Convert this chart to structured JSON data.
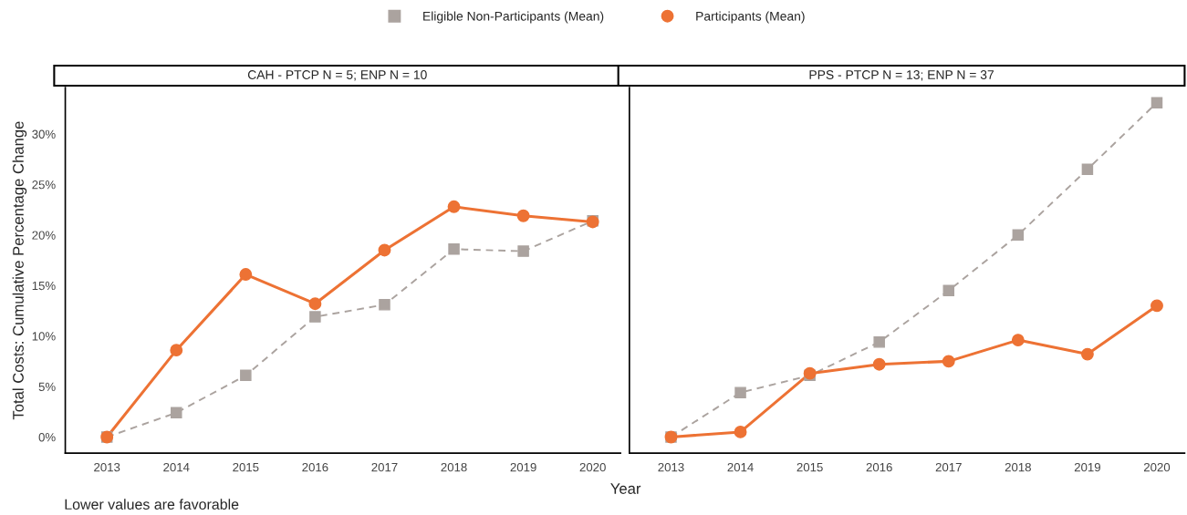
{
  "chart_data": [
    {
      "type": "line",
      "title": "CAH - PTCP N = 5; ENP N = 10",
      "ylabel": "Total Costs: Cumulative Percentage Change",
      "x": [
        2013,
        2014,
        2015,
        2016,
        2017,
        2018,
        2019,
        2020
      ],
      "series": [
        {
          "name": "Eligible Non-Participants (Mean)",
          "color": "#aba39f",
          "marker": "square",
          "line_style": "dashed",
          "values": [
            0,
            2.4,
            6.1,
            11.9,
            13.1,
            18.6,
            18.4,
            21.4
          ]
        },
        {
          "name": "Participants (Mean)",
          "color": "#ed7234",
          "marker": "circle",
          "line_style": "solid",
          "values": [
            0,
            8.6,
            16.1,
            13.2,
            18.5,
            22.8,
            21.9,
            21.3
          ]
        }
      ],
      "xlim": [
        2012.4,
        2020.4
      ],
      "xticks": [
        2013,
        2014,
        2015,
        2016,
        2017,
        2018,
        2019,
        2020
      ],
      "ylim": [
        -1.6,
        34.6
      ],
      "yticks": [
        {
          "value": 0,
          "label": "0%"
        },
        {
          "value": 5,
          "label": "5%"
        },
        {
          "value": 10,
          "label": "10%"
        },
        {
          "value": 15,
          "label": "15%"
        },
        {
          "value": 20,
          "label": "20%"
        },
        {
          "value": 25,
          "label": "25%"
        },
        {
          "value": 30,
          "label": "30%"
        }
      ],
      "grid": false,
      "legend": "top",
      "annotations": [
        "Lower values are favorable"
      ]
    },
    {
      "type": "line",
      "title": "PPS - PTCP N = 13; ENP N = 37",
      "xlabel": "Year",
      "x": [
        2013,
        2014,
        2015,
        2016,
        2017,
        2018,
        2019,
        2020
      ],
      "series": [
        {
          "color": "#aba39f",
          "marker": "square",
          "line_style": "dashed",
          "values": [
            0,
            4.4,
            6.1,
            9.4,
            14.5,
            20.0,
            26.5,
            33.1
          ]
        },
        {
          "color": "#ed7234",
          "marker": "circle",
          "line_style": "solid",
          "values": [
            0,
            0.5,
            6.3,
            7.2,
            7.5,
            9.6,
            8.2,
            13.0
          ]
        }
      ],
      "xlim": [
        2012.4,
        2020.4
      ],
      "xticks": [
        2013,
        2014,
        2015,
        2016,
        2017,
        2018,
        2019,
        2020
      ],
      "ylim": [
        -1.6,
        34.6
      ],
      "grid": false,
      "tick_labels": "x"
    }
  ]
}
